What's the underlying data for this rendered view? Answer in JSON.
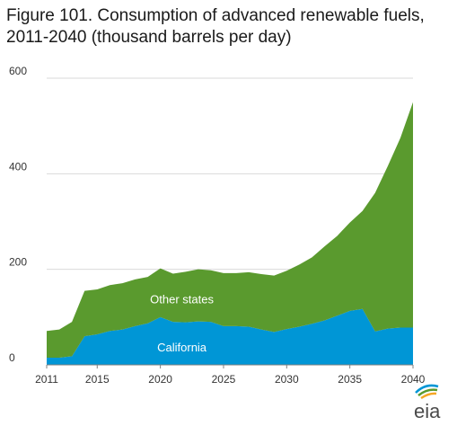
{
  "chart_data": {
    "type": "area",
    "stacked": true,
    "title": "Figure 101. Consumption of advanced renewable fuels, 2011-2040 (thousand barrels per day)",
    "xlabel": "",
    "ylabel": "",
    "xlim": [
      2011,
      2040
    ],
    "ylim": [
      0,
      600
    ],
    "x_ticks": [
      2011,
      2015,
      2020,
      2025,
      2030,
      2035,
      2040
    ],
    "y_ticks": [
      0,
      200,
      400,
      600
    ],
    "grid": "horizontal",
    "x": [
      2011,
      2012,
      2013,
      2014,
      2015,
      2016,
      2017,
      2018,
      2019,
      2020,
      2021,
      2022,
      2023,
      2024,
      2025,
      2026,
      2027,
      2028,
      2029,
      2030,
      2031,
      2032,
      2033,
      2034,
      2035,
      2036,
      2037,
      2038,
      2039,
      2040
    ],
    "series": [
      {
        "name": "California",
        "color": "#0096d6",
        "values": [
          15,
          15,
          18,
          60,
          64,
          71,
          74,
          81,
          87,
          100,
          90,
          89,
          91,
          90,
          81,
          81,
          80,
          74,
          69,
          75,
          80,
          86,
          93,
          103,
          113,
          117,
          70,
          76,
          78,
          78
        ]
      },
      {
        "name": "Other states",
        "color": "#5a9a2e",
        "values": [
          56,
          59,
          72,
          95,
          94,
          96,
          97,
          98,
          97,
          102,
          101,
          106,
          109,
          108,
          111,
          111,
          114,
          116,
          118,
          122,
          130,
          139,
          155,
          167,
          185,
          205,
          290,
          340,
          397,
          472
        ]
      }
    ]
  },
  "logo": {
    "text": "eia",
    "colors": [
      "#0096d6",
      "#5a9a2e",
      "#f5a623"
    ]
  }
}
